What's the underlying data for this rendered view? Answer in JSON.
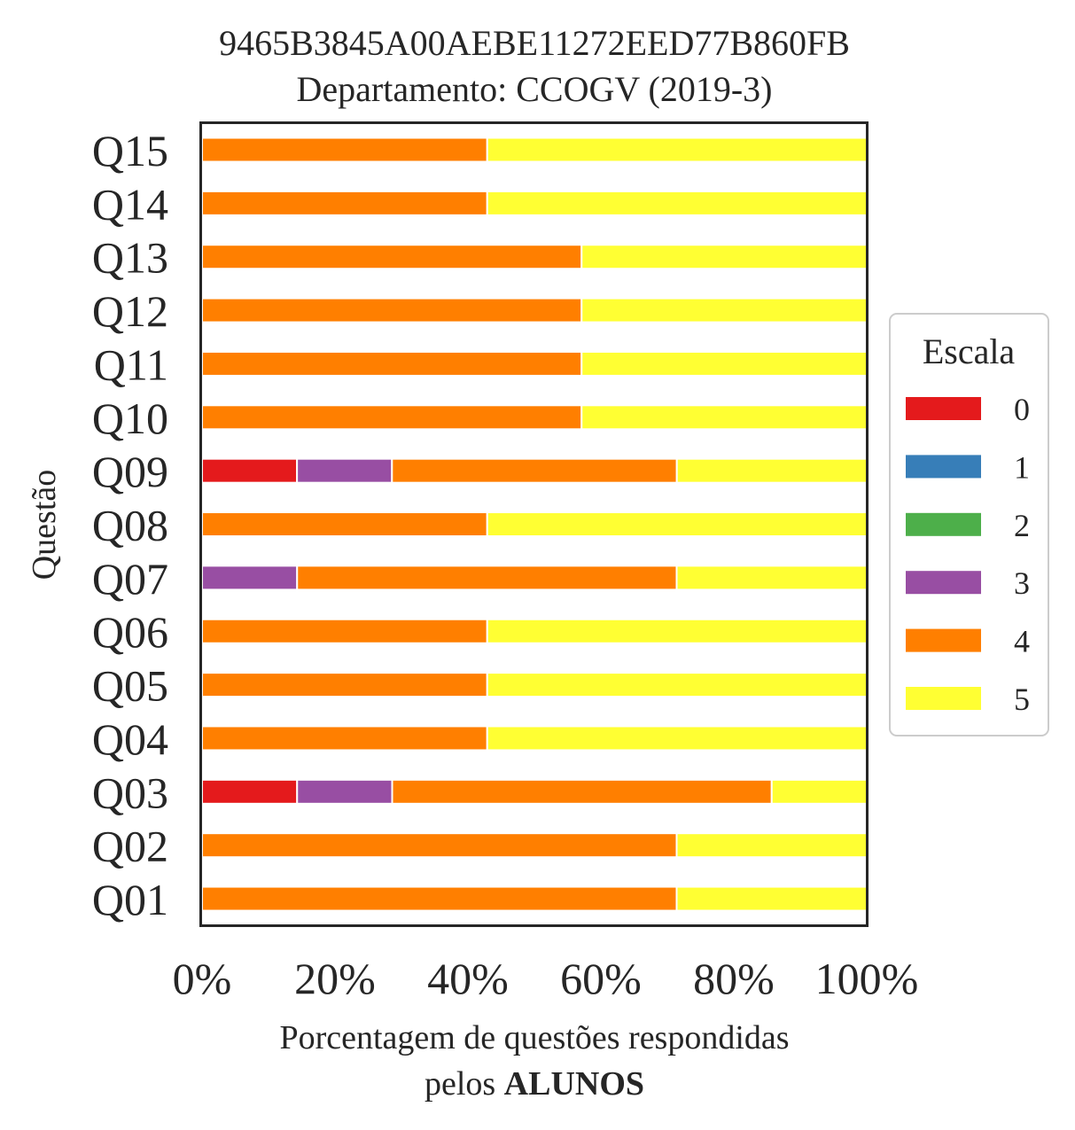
{
  "chart_data": {
    "type": "bar",
    "orientation": "horizontal",
    "stacked": true,
    "title": "9465B3845A00AEBE11272EED77B860FB",
    "subtitle": "Departamento: CCOGV (2019-3)",
    "xlabel_line1": "Porcentagem de questões respondidas",
    "xlabel_line2_prefix": "pelos",
    "xlabel_line2_bold": "ALUNOS",
    "ylabel": "Questão",
    "xlim": [
      0,
      100
    ],
    "xticks": [
      "0%",
      "20%",
      "40%",
      "60%",
      "80%",
      "100%"
    ],
    "xtick_values": [
      0,
      20,
      40,
      60,
      80,
      100
    ],
    "grid": false,
    "legend_title": "Escala",
    "legend_placement": "right",
    "categories": [
      "Q01",
      "Q02",
      "Q03",
      "Q04",
      "Q05",
      "Q06",
      "Q07",
      "Q08",
      "Q09",
      "Q10",
      "Q11",
      "Q12",
      "Q13",
      "Q14",
      "Q15"
    ],
    "series": [
      {
        "name": "0",
        "color": "#e41a1c",
        "values": [
          0,
          0,
          14.3,
          0,
          0,
          0,
          0,
          0,
          14.3,
          0,
          0,
          0,
          0,
          0,
          0
        ]
      },
      {
        "name": "1",
        "color": "#377eb8",
        "values": [
          0,
          0,
          0,
          0,
          0,
          0,
          0,
          0,
          0,
          0,
          0,
          0,
          0,
          0,
          0
        ]
      },
      {
        "name": "2",
        "color": "#4daf4a",
        "values": [
          0,
          0,
          0,
          0,
          0,
          0,
          0,
          0,
          0,
          0,
          0,
          0,
          0,
          0,
          0
        ]
      },
      {
        "name": "3",
        "color": "#984ea3",
        "values": [
          0,
          0,
          14.3,
          0,
          0,
          0,
          14.3,
          0,
          14.3,
          0,
          0,
          0,
          0,
          0,
          0
        ]
      },
      {
        "name": "4",
        "color": "#ff7f00",
        "values": [
          71.4,
          71.4,
          57.1,
          42.9,
          42.9,
          42.9,
          57.1,
          42.9,
          42.9,
          57.1,
          57.1,
          57.1,
          57.1,
          42.9,
          42.9
        ]
      },
      {
        "name": "5",
        "color": "#ffff33",
        "values": [
          28.6,
          28.6,
          14.3,
          57.1,
          57.1,
          57.1,
          28.6,
          57.1,
          28.6,
          42.9,
          42.9,
          42.9,
          42.9,
          57.1,
          57.1
        ]
      }
    ]
  }
}
